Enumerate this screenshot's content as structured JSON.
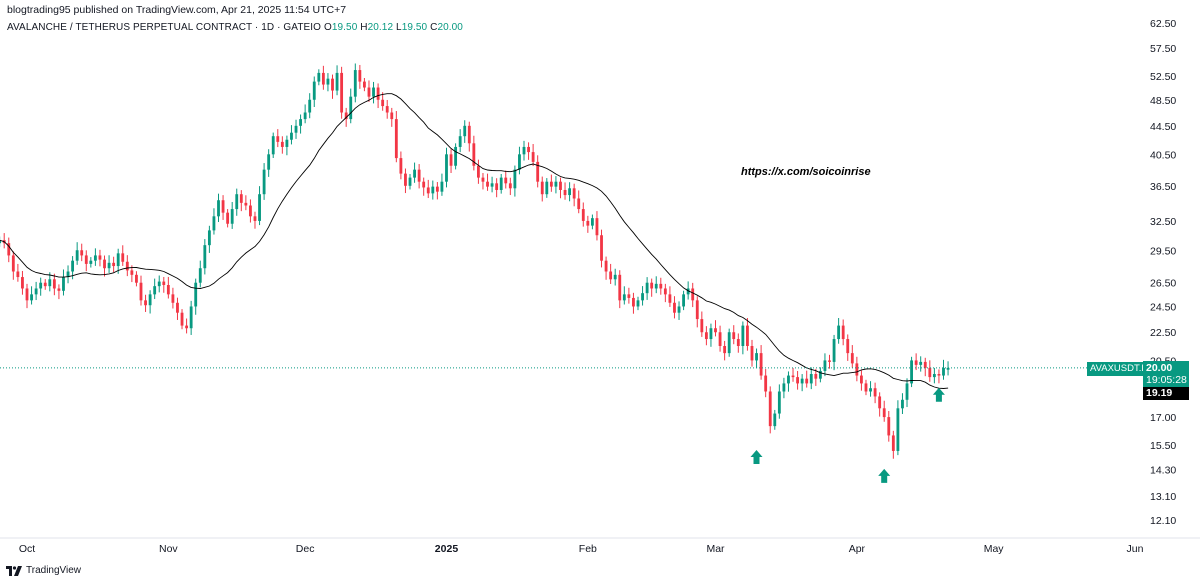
{
  "header": {
    "published": "blogtrading95 published on TradingView.com, Apr 21, 2025 11:54 UTC+7"
  },
  "legend": {
    "name": "AVALANCHE / TETHERUS PERPETUAL CONTRACT · 1D · GATEIO",
    "o_label": "O",
    "o_value": "19.50",
    "h_label": "H",
    "h_value": "20.12",
    "l_label": "L",
    "l_value": "19.50",
    "c_label": "C",
    "c_value": "20.00"
  },
  "watermark": "https://x.com/soicoinrise",
  "footer": {
    "brand": "TradingView"
  },
  "price_axis": {
    "symbol_tag": "AVAXUSDT.P",
    "last_price": "20.00",
    "countdown": "19:05:28",
    "ma_value": "19.19"
  },
  "colors": {
    "up": "#089981",
    "down": "#f23645",
    "ma_line": "#000000",
    "last_price_line": "#089981",
    "arrow": "#089981"
  },
  "annotations": {
    "arrows": [
      {
        "icon": "up-arrow-icon",
        "date": "2025-03-10",
        "price": 14.9
      },
      {
        "icon": "up-arrow-icon",
        "date": "2025-04-07",
        "price": 14.0
      },
      {
        "icon": "up-arrow-icon",
        "date": "2025-04-19",
        "price": 18.3
      }
    ]
  },
  "chart_data": {
    "type": "candlestick",
    "y_scale": "log",
    "y_ticks": [
      "62.50",
      "57.50",
      "52.50",
      "48.50",
      "44.50",
      "40.50",
      "36.50",
      "32.50",
      "29.50",
      "26.50",
      "24.50",
      "22.50",
      "20.50",
      "19.00",
      "17.00",
      "15.50",
      "14.30",
      "13.10",
      "12.10"
    ],
    "x_ticks": [
      {
        "label": "Oct",
        "date": "2024-10-01",
        "bold": false
      },
      {
        "label": "Nov",
        "date": "2024-11-01",
        "bold": false
      },
      {
        "label": "Dec",
        "date": "2024-12-01",
        "bold": false
      },
      {
        "label": "2025",
        "date": "2025-01-01",
        "bold": true
      },
      {
        "label": "Feb",
        "date": "2025-02-01",
        "bold": false
      },
      {
        "label": "Mar",
        "date": "2025-03-01",
        "bold": false
      },
      {
        "label": "Apr",
        "date": "2025-04-01",
        "bold": false
      },
      {
        "label": "May",
        "date": "2025-05-01",
        "bold": false
      },
      {
        "label": "Jun",
        "date": "2025-06-01",
        "bold": false
      }
    ],
    "series_start": "2024-09-25",
    "close": [
      30.5,
      30.2,
      29.0,
      27.5,
      27.0,
      26.0,
      25.0,
      25.5,
      26.0,
      26.5,
      26.2,
      26.8,
      26.0,
      25.8,
      27.0,
      27.5,
      28.5,
      29.5,
      29.0,
      28.2,
      28.5,
      29.0,
      28.6,
      27.8,
      28.3,
      28.0,
      29.2,
      28.4,
      27.6,
      27.2,
      26.5,
      25.0,
      24.6,
      25.5,
      26.2,
      26.6,
      26.3,
      25.5,
      24.8,
      24.0,
      23.0,
      22.8,
      24.5,
      26.5,
      27.8,
      30.0,
      31.5,
      33.0,
      34.8,
      33.4,
      32.2,
      33.8,
      35.5,
      34.5,
      34.2,
      33.0,
      32.5,
      35.5,
      38.5,
      40.5,
      43.0,
      42.2,
      41.5,
      42.5,
      43.5,
      44.5,
      45.5,
      46.5,
      48.5,
      51.5,
      53.0,
      51.0,
      52.0,
      50.0,
      53.0,
      46.5,
      45.5,
      49.0,
      53.5,
      51.5,
      50.5,
      49.0,
      50.5,
      48.5,
      47.5,
      46.5,
      45.5,
      40.0,
      38.0,
      36.5,
      37.5,
      38.5,
      37.0,
      36.3,
      35.6,
      36.4,
      35.8,
      37.0,
      40.5,
      39.0,
      41.5,
      43.0,
      44.5,
      42.0,
      39.0,
      37.5,
      37.0,
      36.4,
      36.8,
      36.0,
      37.5,
      36.8,
      36.2,
      38.5,
      40.5,
      41.5,
      40.8,
      39.5,
      37.0,
      35.5,
      37.0,
      36.4,
      37.0,
      36.0,
      35.4,
      36.2,
      35.0,
      33.8,
      32.5,
      32.0,
      32.8,
      31.0,
      28.5,
      27.5,
      26.8,
      27.2,
      25.0,
      25.5,
      25.2,
      24.5,
      25.0,
      25.6,
      26.5,
      26.0,
      26.4,
      26.0,
      25.5,
      24.8,
      24.0,
      24.5,
      25.5,
      26.0,
      25.0,
      23.5,
      22.5,
      22.0,
      22.8,
      22.5,
      21.5,
      21.0,
      22.5,
      22.0,
      21.5,
      23.0,
      21.5,
      20.5,
      21.0,
      19.5,
      18.5,
      16.5,
      17.2,
      18.5,
      19.0,
      19.5,
      19.4,
      19.0,
      19.3,
      19.0,
      19.6,
      19.3,
      19.8,
      20.5,
      20.4,
      22.0,
      23.0,
      22.0,
      21.0,
      20.3,
      19.5,
      19.0,
      18.5,
      18.7,
      18.2,
      17.5,
      17.0,
      16.0,
      15.2,
      17.5,
      18.0,
      19.0,
      20.5,
      20.2,
      20.4,
      20.0,
      19.4,
      19.6,
      19.5,
      20.0,
      20.0
    ]
  }
}
